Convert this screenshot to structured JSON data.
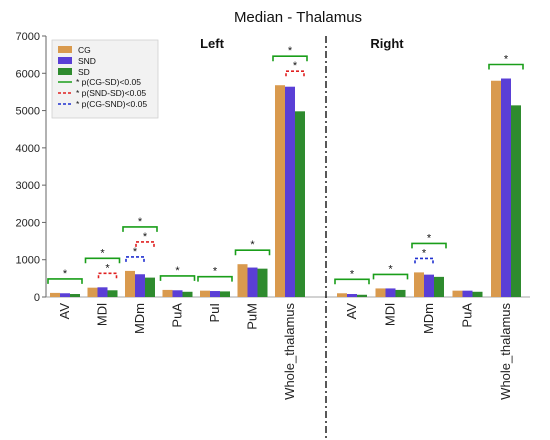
{
  "chart_data": {
    "type": "bar",
    "title": "Median - Thalamus",
    "ylim": [
      0,
      7000
    ],
    "yticks": [
      0,
      1000,
      2000,
      3000,
      4000,
      5000,
      6000,
      7000
    ],
    "colors": {
      "CG": "#d99a4e",
      "SND": "#5a3fd6",
      "SD": "#2e8b2e",
      "p_cg_sd": "#1a9e1a",
      "p_snd_sd": "#e02020",
      "p_cg_snd": "#2030d0"
    },
    "legend": {
      "placement": "top-left",
      "series": [
        "CG",
        "SND",
        "SD"
      ],
      "comparisons": [
        {
          "key": "cg_sd",
          "label": "* p(CG-SD)<0.05",
          "color": "#1a9e1a",
          "dash": "solid"
        },
        {
          "key": "snd_sd",
          "label": "* p(SND-SD)<0.05",
          "color": "#e02020",
          "dash": "dashed"
        },
        {
          "key": "cg_snd",
          "label": "* p(CG-SND)<0.05",
          "color": "#2030d0",
          "dash": "dashed"
        }
      ]
    },
    "star_symbol": "*",
    "panels": [
      {
        "title": "Left",
        "categories": [
          "AV",
          "MDl",
          "MDm",
          "PuA",
          "PuI",
          "PuM",
          "Whole_thalamus"
        ],
        "series": [
          {
            "name": "CG",
            "values": [
              110,
              250,
              700,
              190,
              170,
              880,
              5680
            ]
          },
          {
            "name": "SND",
            "values": [
              100,
              260,
              610,
              180,
              160,
              790,
              5640
            ]
          },
          {
            "name": "SD",
            "values": [
              80,
              180,
              520,
              140,
              150,
              760,
              4980
            ]
          }
        ],
        "significance": [
          {
            "cat": 0,
            "cg_sd": true
          },
          {
            "cat": 1,
            "cg_sd": true,
            "snd_sd": true
          },
          {
            "cat": 2,
            "cg_sd": true,
            "snd_sd": true,
            "cg_snd": true
          },
          {
            "cat": 3,
            "cg_sd": true
          },
          {
            "cat": 4,
            "cg_sd": true
          },
          {
            "cat": 5,
            "cg_sd": true
          },
          {
            "cat": 6,
            "cg_sd": true,
            "snd_sd": true
          }
        ]
      },
      {
        "title": "Right",
        "categories": [
          "AV",
          "MDl",
          "MDm",
          "PuA",
          "Whole_thalamus"
        ],
        "series": [
          {
            "name": "CG",
            "values": [
              100,
              230,
              660,
              170,
              5800
            ]
          },
          {
            "name": "SND",
            "values": [
              80,
              230,
              600,
              170,
              5860
            ]
          },
          {
            "name": "SD",
            "values": [
              60,
              190,
              540,
              140,
              5140
            ]
          }
        ],
        "significance": [
          {
            "cat": 0,
            "cg_sd": true
          },
          {
            "cat": 1,
            "cg_sd": true
          },
          {
            "cat": 2,
            "cg_sd": true,
            "cg_snd": true
          },
          {
            "cat": 4,
            "cg_sd": true
          }
        ]
      }
    ]
  }
}
